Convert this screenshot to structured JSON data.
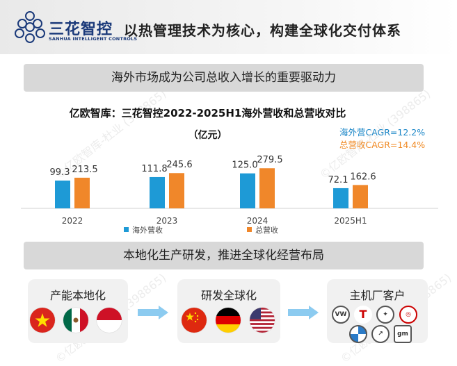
{
  "header": {
    "logo_cn": "三花智控",
    "logo_en": "SANHUA INTELLIGENT CONTROLS",
    "title": "以热管理技术为核心，构建全球化交付体系"
  },
  "banners": {
    "top": "海外市场成为公司总收入增长的重要驱动力",
    "bottom": "本地化生产研发，推进全球化经营布局"
  },
  "cagr": {
    "overseas": "海外营CAGR=12.2%",
    "total": "总营收CAGR=14.4%"
  },
  "chart_data": {
    "type": "bar",
    "title": "亿欧智库：三花智控2022-2025H1海外营收和总营收对比",
    "subtitle": "（亿元）",
    "categories": [
      "2022",
      "2023",
      "2024",
      "2025H1"
    ],
    "series": [
      {
        "name": "海外营收",
        "values": [
          99.3,
          111.8,
          125.0,
          72.1
        ],
        "color": "#1e9ad6"
      },
      {
        "name": "总营收",
        "values": [
          213.5,
          245.6,
          279.5,
          162.6
        ],
        "color": "#f0872a"
      }
    ],
    "value_labels": [
      [
        "99.3",
        "111.8",
        "125.0",
        "72.1"
      ],
      [
        "213.5",
        "245.6",
        "279.5",
        "162.6"
      ]
    ],
    "ylim": [
      0,
      300
    ],
    "grid": false,
    "legend": "bottom"
  },
  "bottom": {
    "box1": {
      "label": "产能本地化",
      "flags": [
        "vietnam-flag-icon",
        "mexico-flag-icon",
        "indonesia-flag-icon"
      ]
    },
    "box2": {
      "label": "研发全球化",
      "flags": [
        "china-flag-icon",
        "germany-flag-icon",
        "usa-flag-icon"
      ]
    },
    "box3": {
      "label": "主机厂客户",
      "brands": [
        "vw-logo",
        "tesla-logo",
        "mercedes-logo",
        "toyota-logo",
        "bmw-logo",
        "volvo-logo",
        "gm-logo"
      ]
    }
  },
  "watermark": "©亿欧智库-杜业 (398865)",
  "colors": {
    "overseas": "#1e9ad6",
    "total": "#f0872a",
    "banner": "#d8d8d8",
    "logo": "#1b3a7a"
  }
}
